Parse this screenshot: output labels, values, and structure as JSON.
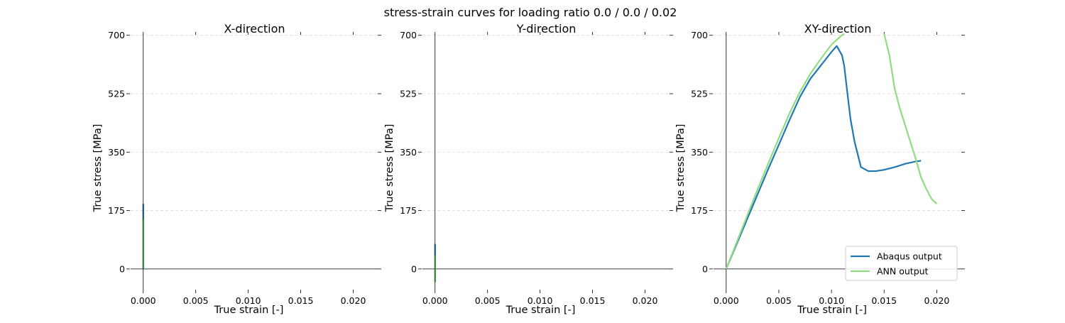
{
  "figure": {
    "title": "stress-strain curves for loading ratio 0.0 / 0.0 / 0.02"
  },
  "chart_data": [
    {
      "type": "line",
      "title": "X-direction",
      "xlabel": "True strain [-]",
      "ylabel": "True stress [MPa]",
      "xlim": [
        -0.0012,
        0.0224
      ],
      "ylim": [
        -62,
        710
      ],
      "xticks": [
        0.0,
        0.005,
        0.01,
        0.015,
        0.02
      ],
      "xtick_labels": [
        "0.000",
        "0.005",
        "0.010",
        "0.015",
        "0.020"
      ],
      "yticks": [
        0,
        175,
        350,
        525,
        700
      ],
      "ytick_labels": [
        "0",
        "175",
        "350",
        "525",
        "700"
      ],
      "grid": "y",
      "series": [
        {
          "color": "#1f4e79",
          "x": [
            0.0,
            0.0,
            0.0
          ],
          "y": [
            145,
            175,
            195
          ]
        },
        {
          "color": "#2e7d32",
          "x": [
            0.0,
            0.0,
            0.0
          ],
          "y": [
            0,
            80,
            150
          ]
        }
      ]
    },
    {
      "type": "line",
      "title": "Y-direction",
      "xlabel": "True strain [-]",
      "ylabel": "True stress [MPa]",
      "xlim": [
        -0.0012,
        0.0224
      ],
      "ylim": [
        -62,
        710
      ],
      "xticks": [
        0.0,
        0.005,
        0.01,
        0.015,
        0.02
      ],
      "xtick_labels": [
        "0.000",
        "0.005",
        "0.010",
        "0.015",
        "0.020"
      ],
      "yticks": [
        0,
        175,
        350,
        525,
        700
      ],
      "ytick_labels": [
        "0",
        "175",
        "350",
        "525",
        "700"
      ],
      "grid": "y",
      "series": [
        {
          "color": "#1f4e79",
          "x": [
            0.0,
            0.0,
            0.0
          ],
          "y": [
            40,
            60,
            75
          ]
        },
        {
          "color": "#2e7d32",
          "x": [
            0.0,
            0.0,
            0.0
          ],
          "y": [
            -40,
            0,
            40
          ]
        }
      ]
    },
    {
      "type": "line",
      "title": "XY-direction",
      "xlabel": "True strain [-]",
      "ylabel": "True stress [MPa]",
      "xlim": [
        -0.0012,
        0.0224
      ],
      "ylim": [
        -62,
        710
      ],
      "xticks": [
        0.0,
        0.005,
        0.01,
        0.015,
        0.02
      ],
      "xtick_labels": [
        "0.000",
        "0.005",
        "0.010",
        "0.015",
        "0.020"
      ],
      "yticks": [
        0,
        175,
        350,
        525,
        700
      ],
      "ytick_labels": [
        "0",
        "175",
        "350",
        "525",
        "700"
      ],
      "grid": "y",
      "legend": "bottom-right",
      "series": [
        {
          "name": "Abaqus output",
          "color": "#1f77b4",
          "x": [
            0.0,
            0.001,
            0.002,
            0.003,
            0.004,
            0.005,
            0.006,
            0.007,
            0.008,
            0.009,
            0.0095,
            0.01,
            0.0105,
            0.011,
            0.0112,
            0.0118,
            0.0122,
            0.0128,
            0.0135,
            0.0142,
            0.015,
            0.016,
            0.017,
            0.018,
            0.0185
          ],
          "y": [
            0,
            75,
            150,
            225,
            300,
            372,
            445,
            515,
            570,
            610,
            630,
            650,
            668,
            640,
            610,
            450,
            380,
            305,
            293,
            293,
            297,
            305,
            315,
            322,
            324
          ]
        },
        {
          "name": "ANN output",
          "color": "#90dc80",
          "x": [
            0.0,
            0.001,
            0.002,
            0.003,
            0.004,
            0.005,
            0.006,
            0.007,
            0.008,
            0.009,
            0.01,
            0.0108,
            0.0112,
            0.015,
            0.0155,
            0.016,
            0.0165,
            0.017,
            0.0175,
            0.018,
            0.0185,
            0.019,
            0.0195,
            0.02
          ],
          "y": [
            0,
            80,
            160,
            240,
            316,
            392,
            465,
            530,
            585,
            630,
            672,
            695,
            705,
            705,
            640,
            540,
            480,
            430,
            380,
            330,
            275,
            240,
            210,
            195
          ]
        }
      ]
    }
  ]
}
